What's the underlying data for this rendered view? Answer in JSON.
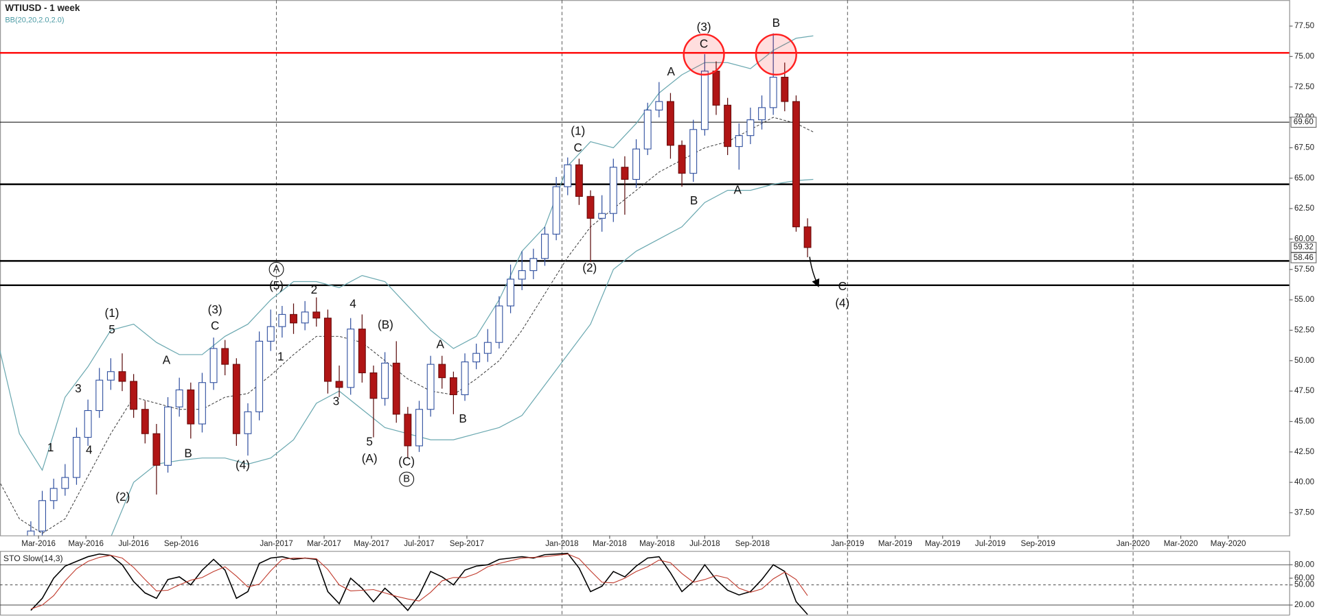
{
  "chart_data": [
    {
      "type": "candlestick",
      "title": "WTIUSD - 1 week",
      "indicator_label": "BB(20,20,2.0,2.0)",
      "x": [
        2016.14,
        2016.18,
        2016.22,
        2016.26,
        2016.3,
        2016.34,
        2016.38,
        2016.42,
        2016.46,
        2016.5,
        2016.54,
        2016.58,
        2016.62,
        2016.66,
        2016.7,
        2016.74,
        2016.78,
        2016.82,
        2016.86,
        2016.9,
        2016.94,
        2016.98,
        2017.02,
        2017.06,
        2017.1,
        2017.14,
        2017.18,
        2017.22,
        2017.26,
        2017.3,
        2017.34,
        2017.38,
        2017.42,
        2017.46,
        2017.5,
        2017.54,
        2017.58,
        2017.62,
        2017.66,
        2017.7,
        2017.74,
        2017.78,
        2017.82,
        2017.86,
        2017.9,
        2017.94,
        2017.98,
        2018.02,
        2018.06,
        2018.1,
        2018.14,
        2018.18,
        2018.22,
        2018.26,
        2018.3,
        2018.34,
        2018.38,
        2018.42,
        2018.46,
        2018.5,
        2018.54,
        2018.58,
        2018.62,
        2018.66,
        2018.7,
        2018.74,
        2018.78,
        2018.82,
        2018.86
      ],
      "open": [
        33.0,
        36.0,
        38.5,
        39.5,
        40.4,
        43.7,
        45.9,
        48.4,
        49.1,
        48.3,
        46.0,
        44.0,
        41.4,
        46.2,
        47.6,
        44.8,
        48.2,
        51.0,
        49.7,
        44.0,
        45.8,
        51.6,
        52.8,
        53.8,
        53.1,
        54.0,
        53.5,
        48.3,
        47.8,
        52.6,
        49.0,
        46.9,
        49.8,
        45.6,
        43.0,
        46.0,
        49.7,
        48.6,
        47.2,
        49.9,
        50.6,
        51.5,
        54.5,
        56.7,
        57.4,
        58.4,
        60.4,
        64.3,
        66.1,
        63.5,
        61.7,
        62.1,
        65.9,
        64.9,
        67.4,
        70.6,
        71.3,
        67.7,
        65.4,
        69.0,
        73.8,
        71.0,
        67.6,
        68.5,
        69.8,
        70.8,
        73.3,
        71.3,
        61.0
      ],
      "high": [
        36.8,
        39.3,
        40.3,
        41.5,
        44.5,
        46.8,
        49.4,
        50.2,
        50.6,
        48.9,
        46.7,
        44.8,
        47.0,
        48.6,
        48.2,
        49.0,
        51.9,
        51.7,
        50.2,
        46.5,
        52.4,
        54.2,
        54.5,
        54.7,
        54.9,
        55.2,
        54.2,
        49.6,
        53.5,
        53.8,
        49.6,
        50.7,
        51.6,
        46.2,
        46.7,
        50.4,
        50.4,
        49.1,
        50.6,
        51.4,
        52.6,
        55.3,
        57.9,
        59.0,
        59.2,
        61.0,
        65.1,
        66.7,
        66.6,
        64.0,
        63.6,
        66.6,
        66.8,
        68.2,
        71.2,
        72.9,
        72.0,
        68.1,
        69.8,
        75.2,
        74.6,
        71.6,
        69.5,
        70.8,
        71.8,
        76.9,
        74.5,
        71.8,
        61.7
      ],
      "low": [
        32.2,
        35.4,
        37.8,
        38.9,
        39.8,
        43.0,
        45.3,
        47.6,
        47.5,
        45.3,
        43.2,
        39.0,
        40.8,
        45.4,
        43.6,
        44.1,
        47.6,
        48.8,
        43.0,
        42.2,
        45.1,
        50.8,
        51.9,
        52.2,
        52.5,
        52.8,
        47.3,
        47.0,
        47.2,
        48.2,
        43.7,
        46.3,
        44.9,
        42.0,
        42.5,
        45.4,
        47.7,
        45.6,
        46.7,
        49.3,
        49.9,
        51.0,
        53.9,
        55.8,
        56.7,
        57.8,
        59.9,
        63.6,
        62.8,
        58.1,
        60.6,
        61.4,
        62.0,
        64.2,
        66.9,
        70.0,
        66.6,
        64.3,
        64.7,
        68.5,
        70.2,
        66.9,
        65.7,
        67.8,
        69.0,
        70.2,
        70.5,
        60.6,
        58.5
      ],
      "close": [
        36.0,
        38.5,
        39.5,
        40.4,
        43.7,
        45.9,
        48.4,
        49.1,
        48.3,
        46.0,
        44.0,
        41.4,
        46.2,
        47.6,
        44.8,
        48.2,
        51.0,
        49.7,
        44.0,
        45.8,
        51.6,
        52.8,
        53.8,
        53.1,
        54.0,
        53.5,
        48.3,
        47.8,
        52.6,
        49.0,
        46.9,
        49.8,
        45.6,
        43.0,
        46.0,
        49.7,
        48.6,
        47.2,
        49.9,
        50.6,
        51.5,
        54.5,
        56.7,
        57.4,
        58.4,
        60.4,
        64.3,
        66.1,
        63.5,
        61.7,
        62.1,
        65.9,
        64.9,
        67.4,
        70.6,
        71.3,
        67.7,
        65.4,
        69.0,
        73.8,
        71.0,
        67.6,
        68.5,
        69.8,
        70.8,
        73.3,
        71.3,
        61.0,
        59.3
      ],
      "bull_color": "#2f4f9f",
      "bear_color": "#b01515",
      "bollinger": {
        "color": "#6aa8b0",
        "x": [
          2016.02,
          2016.1,
          2016.18,
          2016.26,
          2016.34,
          2016.42,
          2016.5,
          2016.58,
          2016.66,
          2016.74,
          2016.82,
          2016.9,
          2016.98,
          2017.06,
          2017.14,
          2017.22,
          2017.3,
          2017.38,
          2017.46,
          2017.54,
          2017.62,
          2017.7,
          2017.78,
          2017.86,
          2017.94,
          2018.02,
          2018.1,
          2018.18,
          2018.26,
          2018.34,
          2018.42,
          2018.5,
          2018.58,
          2018.66,
          2018.74,
          2018.82,
          2018.88
        ],
        "upper": [
          52.0,
          44.0,
          41.0,
          47.0,
          49.5,
          52.5,
          53.0,
          51.5,
          50.5,
          50.5,
          52.0,
          53.0,
          55.0,
          56.5,
          56.5,
          56.0,
          57.0,
          56.5,
          54.5,
          52.5,
          51.0,
          52.0,
          55.0,
          59.0,
          61.0,
          66.0,
          68.0,
          67.5,
          69.5,
          72.0,
          73.5,
          74.5,
          74.5,
          74.0,
          75.5,
          76.5,
          76.7
        ],
        "middle": [
          40.5,
          37.0,
          35.8,
          37.0,
          40.5,
          44.0,
          47.0,
          46.5,
          46.0,
          46.0,
          47.0,
          47.3,
          48.8,
          50.5,
          52.0,
          52.0,
          51.5,
          50.0,
          48.5,
          47.5,
          47.2,
          48.5,
          50.0,
          52.5,
          55.5,
          58.5,
          61.0,
          62.5,
          64.0,
          65.5,
          66.5,
          67.5,
          68.0,
          69.0,
          70.0,
          69.5,
          68.8
        ],
        "lower": [
          29,
          30,
          31,
          27,
          31,
          35.5,
          40.0,
          41.5,
          41.8,
          42.0,
          42.0,
          41.5,
          42.0,
          43.5,
          46.5,
          47.5,
          46.0,
          44.5,
          44.0,
          43.5,
          43.5,
          44.0,
          44.5,
          45.5,
          48.0,
          50.5,
          53.0,
          57.5,
          59.0,
          60.0,
          61.0,
          63.0,
          64.0,
          64.0,
          64.5,
          64.8,
          64.9
        ]
      },
      "xlim": [
        2016.032,
        2020.547
      ],
      "xticks": [
        {
          "value": 2016.167,
          "label": "Mar-2016"
        },
        {
          "value": 2016.333,
          "label": "May-2016"
        },
        {
          "value": 2016.5,
          "label": "Jul-2016"
        },
        {
          "value": 2016.667,
          "label": "Sep-2016"
        },
        {
          "value": 2017,
          "label": "Jan-2017"
        },
        {
          "value": 2017.167,
          "label": "Mar-2017"
        },
        {
          "value": 2017.333,
          "label": "May-2017"
        },
        {
          "value": 2017.5,
          "label": "Jul-2017"
        },
        {
          "value": 2017.667,
          "label": "Sep-2017"
        },
        {
          "value": 2018,
          "label": "Jan-2018"
        },
        {
          "value": 2018.167,
          "label": "Mar-2018"
        },
        {
          "value": 2018.333,
          "label": "May-2018"
        },
        {
          "value": 2018.5,
          "label": "Jul-2018"
        },
        {
          "value": 2018.667,
          "label": "Sep-2018"
        },
        {
          "value": 2019,
          "label": "Jan-2019"
        },
        {
          "value": 2019.167,
          "label": "Mar-2019"
        },
        {
          "value": 2019.333,
          "label": "May-2019"
        },
        {
          "value": 2019.5,
          "label": "Jul-2019"
        },
        {
          "value": 2019.667,
          "label": "Sep-2019"
        },
        {
          "value": 2020,
          "label": "Jan-2020"
        },
        {
          "value": 2020.167,
          "label": "Mar-2020"
        },
        {
          "value": 2020.333,
          "label": "May-2020"
        }
      ],
      "xgrid": [
        2017,
        2018,
        2019,
        2020
      ],
      "ylim": [
        35.64,
        79.64
      ],
      "yticks": [
        {
          "value": 77.5,
          "label": "77.50"
        },
        {
          "value": 75,
          "label": "75.00"
        },
        {
          "value": 72.5,
          "label": "72.50"
        },
        {
          "value": 70,
          "label": "70.00"
        },
        {
          "value": 67.5,
          "label": "67.50"
        },
        {
          "value": 65,
          "label": "65.00"
        },
        {
          "value": 62.5,
          "label": "62.50"
        },
        {
          "value": 60,
          "label": "60.00"
        },
        {
          "value": 57.5,
          "label": "57.50"
        },
        {
          "value": 55,
          "label": "55.00"
        },
        {
          "value": 52.5,
          "label": "52.50"
        },
        {
          "value": 50,
          "label": "50.00"
        },
        {
          "value": 47.5,
          "label": "47.50"
        },
        {
          "value": 45,
          "label": "45.00"
        },
        {
          "value": 42.5,
          "label": "42.50"
        },
        {
          "value": 40,
          "label": "40.00"
        },
        {
          "value": 37.5,
          "label": "37.50"
        }
      ],
      "levels": [
        {
          "value": 75.3,
          "color": "#ff0000",
          "width": 2
        },
        {
          "value": 69.6,
          "color": "#000000",
          "width": 0.8
        },
        {
          "value": 64.5,
          "color": "#000000",
          "width": 2
        },
        {
          "value": 58.2,
          "color": "#000000",
          "width": 2
        },
        {
          "value": 56.2,
          "color": "#000000",
          "width": 2
        }
      ],
      "price_labels": [
        {
          "value": 69.6,
          "label": "69.60"
        },
        {
          "value": 59.32,
          "label": "59.32"
        },
        {
          "value": 58.46,
          "label": "58.46"
        }
      ],
      "highlights": [
        {
          "x": 2018.497,
          "y": 75.16
        },
        {
          "x": 2018.75,
          "y": 75.16
        }
      ],
      "annotations": [
        {
          "text": "(1)",
          "x": 2016.424,
          "y": 53.84
        },
        {
          "text": "5",
          "x": 2016.424,
          "y": 52.5
        },
        {
          "text": "3",
          "x": 2016.306,
          "y": 47.64
        },
        {
          "text": "1",
          "x": 2016.209,
          "y": 42.81
        },
        {
          "text": "4",
          "x": 2016.344,
          "y": 42.6
        },
        {
          "text": "(2)",
          "x": 2016.462,
          "y": 38.74
        },
        {
          "text": "A",
          "x": 2016.615,
          "y": 49.98
        },
        {
          "text": "B",
          "x": 2016.691,
          "y": 42.33
        },
        {
          "text": "(3)",
          "x": 2016.785,
          "y": 54.12
        },
        {
          "text": "C",
          "x": 2016.785,
          "y": 52.81
        },
        {
          "text": "(4)",
          "x": 2016.882,
          "y": 41.36
        },
        {
          "text": "A",
          "x": 2017.0,
          "y": 57.5,
          "circled": true
        },
        {
          "text": "(5)",
          "x": 2017.0,
          "y": 56.12
        },
        {
          "text": "1",
          "x": 2017.015,
          "y": 50.26
        },
        {
          "text": "2",
          "x": 2017.132,
          "y": 55.78
        },
        {
          "text": "3",
          "x": 2017.209,
          "y": 46.6
        },
        {
          "text": "4",
          "x": 2017.268,
          "y": 54.6
        },
        {
          "text": "(B)",
          "x": 2017.382,
          "y": 52.88
        },
        {
          "text": "5",
          "x": 2017.326,
          "y": 43.29
        },
        {
          "text": "(A)",
          "x": 2017.326,
          "y": 41.91
        },
        {
          "text": "A",
          "x": 2017.574,
          "y": 51.29
        },
        {
          "text": "B",
          "x": 2017.653,
          "y": 45.16
        },
        {
          "text": "(C)",
          "x": 2017.456,
          "y": 41.64
        },
        {
          "text": "B",
          "x": 2017.456,
          "y": 40.26,
          "circled": true
        },
        {
          "text": "(1)",
          "x": 2018.056,
          "y": 68.81
        },
        {
          "text": "C",
          "x": 2018.056,
          "y": 67.43
        },
        {
          "text": "(2)",
          "x": 2018.097,
          "y": 57.57
        },
        {
          "text": "A",
          "x": 2018.382,
          "y": 73.71
        },
        {
          "text": "B",
          "x": 2018.462,
          "y": 63.09
        },
        {
          "text": "(3)",
          "x": 2018.497,
          "y": 77.36
        },
        {
          "text": "C",
          "x": 2018.497,
          "y": 75.98
        },
        {
          "text": "B",
          "x": 2018.75,
          "y": 77.71
        },
        {
          "text": "A",
          "x": 2018.615,
          "y": 63.98
        },
        {
          "text": "C",
          "x": 2018.982,
          "y": 56.05
        },
        {
          "text": "(4)",
          "x": 2018.982,
          "y": 54.67
        }
      ]
    },
    {
      "type": "line",
      "title": "STO Slow(14,3)",
      "x": [
        2016.14,
        2016.18,
        2016.22,
        2016.26,
        2016.3,
        2016.34,
        2016.38,
        2016.42,
        2016.46,
        2016.5,
        2016.54,
        2016.58,
        2016.62,
        2016.66,
        2016.7,
        2016.74,
        2016.78,
        2016.82,
        2016.86,
        2016.9,
        2016.94,
        2016.98,
        2017.02,
        2017.06,
        2017.1,
        2017.14,
        2017.18,
        2017.22,
        2017.26,
        2017.3,
        2017.34,
        2017.38,
        2017.42,
        2017.46,
        2017.5,
        2017.54,
        2017.58,
        2017.62,
        2017.66,
        2017.7,
        2017.74,
        2017.78,
        2017.82,
        2017.86,
        2017.9,
        2017.94,
        2017.98,
        2018.02,
        2018.06,
        2018.1,
        2018.14,
        2018.18,
        2018.22,
        2018.26,
        2018.3,
        2018.34,
        2018.38,
        2018.42,
        2018.46,
        2018.5,
        2018.54,
        2018.58,
        2018.62,
        2018.66,
        2018.7,
        2018.74,
        2018.78,
        2018.82,
        2018.86
      ],
      "series": [
        {
          "color": "#000000",
          "values": [
            12,
            30,
            60,
            78,
            85,
            92,
            96,
            94,
            80,
            55,
            38,
            30,
            58,
            62,
            50,
            72,
            88,
            72,
            30,
            40,
            82,
            90,
            92,
            88,
            90,
            88,
            40,
            22,
            60,
            45,
            25,
            45,
            30,
            12,
            35,
            70,
            62,
            50,
            72,
            78,
            80,
            88,
            90,
            92,
            90,
            95,
            96,
            97,
            75,
            40,
            48,
            70,
            62,
            78,
            90,
            92,
            68,
            40,
            55,
            80,
            58,
            42,
            35,
            40,
            58,
            80,
            70,
            25,
            6
          ]
        },
        {
          "color": "#c0392b",
          "values": [
            14,
            20,
            34,
            56,
            74,
            85,
            91,
            94,
            90,
            76,
            58,
            41,
            42,
            50,
            57,
            61,
            70,
            77,
            63,
            47,
            51,
            71,
            88,
            90,
            90,
            89,
            73,
            50,
            41,
            42,
            43,
            38,
            33,
            29,
            26,
            39,
            56,
            61,
            61,
            67,
            77,
            82,
            86,
            90,
            91,
            92,
            94,
            96,
            89,
            71,
            54,
            53,
            60,
            70,
            77,
            87,
            83,
            67,
            54,
            58,
            64,
            60,
            45,
            39,
            44,
            59,
            69,
            58,
            34
          ]
        }
      ],
      "xlim": [
        2016.032,
        2020.547
      ],
      "ylim": [
        5,
        100
      ],
      "yticks": [
        {
          "value": 80,
          "label": "80.00"
        },
        {
          "value": 60,
          "label": "60.00"
        },
        {
          "value": 50,
          "label": "50.00"
        },
        {
          "value": 20,
          "label": "20.00"
        }
      ],
      "hlines": [
        {
          "value": 80,
          "dashed": false
        },
        {
          "value": 50,
          "dashed": true
        },
        {
          "value": 20,
          "dashed": false
        }
      ]
    }
  ]
}
